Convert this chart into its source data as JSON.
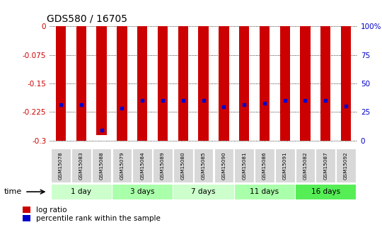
{
  "title": "GDS580 / 16705",
  "samples": [
    "GSM15078",
    "GSM15083",
    "GSM15088",
    "GSM15079",
    "GSM15084",
    "GSM15089",
    "GSM15080",
    "GSM15085",
    "GSM15090",
    "GSM15081",
    "GSM15086",
    "GSM15091",
    "GSM15082",
    "GSM15087",
    "GSM15092"
  ],
  "log_ratio_bottom": [
    -0.3,
    -0.3,
    -0.285,
    -0.3,
    -0.3,
    -0.3,
    -0.3,
    -0.3,
    -0.3,
    -0.3,
    -0.3,
    -0.3,
    -0.3,
    -0.3,
    -0.3
  ],
  "percentile_rank": [
    -0.205,
    -0.205,
    -0.272,
    -0.215,
    -0.195,
    -0.195,
    -0.195,
    -0.195,
    -0.212,
    -0.205,
    -0.202,
    -0.195,
    -0.195,
    -0.195,
    -0.21
  ],
  "bar_color": "#cc0000",
  "dot_color": "#0000cc",
  "groups": [
    {
      "label": "1 day",
      "start": 0,
      "end": 3,
      "color": "#ccffcc"
    },
    {
      "label": "3 days",
      "start": 3,
      "end": 6,
      "color": "#aaffaa"
    },
    {
      "label": "7 days",
      "start": 6,
      "end": 9,
      "color": "#ccffcc"
    },
    {
      "label": "11 days",
      "start": 9,
      "end": 12,
      "color": "#aaffaa"
    },
    {
      "label": "16 days",
      "start": 12,
      "end": 15,
      "color": "#55ee55"
    }
  ],
  "ylim": [
    -0.315,
    0.005
  ],
  "yticks": [
    0,
    -0.075,
    -0.15,
    -0.225,
    -0.3
  ],
  "yticklabels": [
    "0",
    "-0.075",
    "-0.15",
    "-0.225",
    "-0.3"
  ],
  "right_yticks_pct": [
    100,
    75,
    50,
    25,
    0
  ],
  "right_yticklabels": [
    "100%",
    "75",
    "50",
    "25",
    "0"
  ],
  "bar_width": 0.5,
  "label_log_ratio": "log ratio",
  "label_pct": "percentile rank within the sample",
  "time_label": "time",
  "bg_color": "#f0f0f0",
  "plot_bg": "#ffffff"
}
